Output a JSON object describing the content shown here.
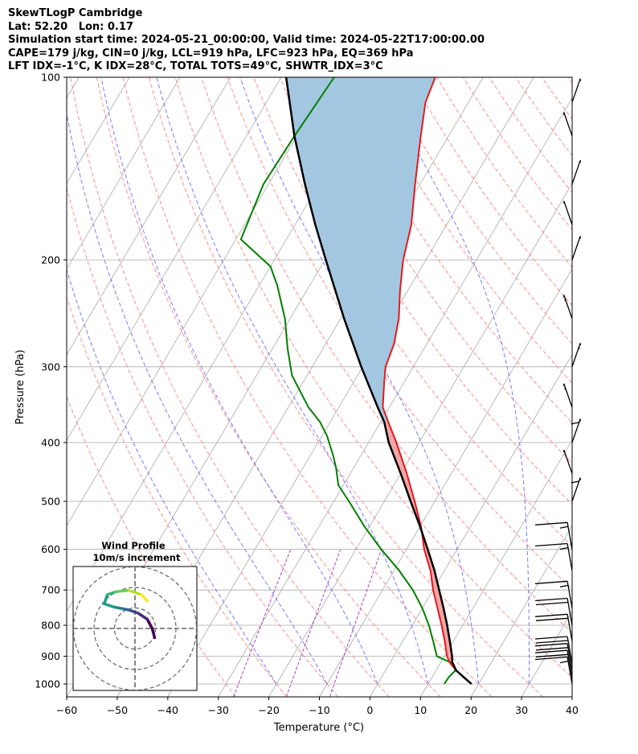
{
  "header": {
    "title": "SkewTLogP Cambridge",
    "location": "Lat: 52.20   Lon: 0.17",
    "times": "Simulation start time: 2024-05-21_00:00:00, Valid time: 2024-05-22T17:00:00.00",
    "params": "CAPE=179 j/kg, CIN=0 j/kg, LCL=919 hPa, LFC=923 hPa, EQ=369 hPa",
    "indices": "LFT IDX=-1°C, K IDX=28°C, TOTAL TOTS=49°C, SHWTR_IDX=3°C"
  },
  "chart_data": {
    "type": "line",
    "subtype": "skew-T log-p",
    "xlabel": "Temperature (°C)",
    "ylabel": "Pressure (hPa)",
    "xlim": [
      -60,
      40
    ],
    "ylim": [
      1050,
      100
    ],
    "y_scale": "log",
    "grid": true,
    "x_ticks": [
      "−60",
      "−50",
      "−40",
      "−30",
      "−20",
      "−10",
      "0",
      "10",
      "20",
      "30",
      "40"
    ],
    "y_ticks": [
      "100",
      "200",
      "300",
      "400",
      "500",
      "600",
      "700",
      "800",
      "900",
      "1000"
    ],
    "colors": {
      "temperature": "#e31a1c",
      "dewpoint": "#008000",
      "parcel": "#000000",
      "cape_fill": "#a3c7e0",
      "cin_fill": "#f4a6a6",
      "dry_adiabat": "#ff7f7f",
      "moist_adiabat": "#6a6aff",
      "mixing_ratio": "#b040c0",
      "isotherm": "#aaaaaa"
    },
    "temperature_profile": [
      {
        "p": 1000,
        "t": 18.6
      },
      {
        "p": 975,
        "t": 16.2
      },
      {
        "p": 950,
        "t": 14.0
      },
      {
        "p": 925,
        "t": 12.0
      },
      {
        "p": 900,
        "t": 10.5
      },
      {
        "p": 850,
        "t": 8.3
      },
      {
        "p": 800,
        "t": 5.8
      },
      {
        "p": 750,
        "t": 3.0
      },
      {
        "p": 700,
        "t": 0.0
      },
      {
        "p": 650,
        "t": -2.8
      },
      {
        "p": 600,
        "t": -6.5
      },
      {
        "p": 550,
        "t": -9.8
      },
      {
        "p": 500,
        "t": -14.0
      },
      {
        "p": 450,
        "t": -18.8
      },
      {
        "p": 400,
        "t": -24.5
      },
      {
        "p": 370,
        "t": -28.5
      },
      {
        "p": 350,
        "t": -31.3
      },
      {
        "p": 320,
        "t": -33.8
      },
      {
        "p": 300,
        "t": -35.5
      },
      {
        "p": 275,
        "t": -36.5
      },
      {
        "p": 250,
        "t": -38.5
      },
      {
        "p": 225,
        "t": -41.5
      },
      {
        "p": 200,
        "t": -44.5
      },
      {
        "p": 175,
        "t": -47.0
      },
      {
        "p": 150,
        "t": -51.0
      },
      {
        "p": 125,
        "t": -55.5
      },
      {
        "p": 110,
        "t": -58.5
      },
      {
        "p": 100,
        "t": -59.5
      }
    ],
    "dewpoint_profile": [
      {
        "p": 1000,
        "t": 13.2
      },
      {
        "p": 975,
        "t": 13.3
      },
      {
        "p": 950,
        "t": 13.8
      },
      {
        "p": 925,
        "t": 12.5
      },
      {
        "p": 900,
        "t": 8.5
      },
      {
        "p": 850,
        "t": 6.0
      },
      {
        "p": 800,
        "t": 3.3
      },
      {
        "p": 750,
        "t": 0.0
      },
      {
        "p": 700,
        "t": -4.0
      },
      {
        "p": 650,
        "t": -9.0
      },
      {
        "p": 600,
        "t": -15.0
      },
      {
        "p": 550,
        "t": -21.0
      },
      {
        "p": 500,
        "t": -27.0
      },
      {
        "p": 470,
        "t": -31.0
      },
      {
        "p": 440,
        "t": -33.5
      },
      {
        "p": 420,
        "t": -35.5
      },
      {
        "p": 390,
        "t": -39.0
      },
      {
        "p": 370,
        "t": -42.0
      },
      {
        "p": 350,
        "t": -46.0
      },
      {
        "p": 310,
        "t": -53.0
      },
      {
        "p": 280,
        "t": -57.0
      },
      {
        "p": 250,
        "t": -61.0
      },
      {
        "p": 220,
        "t": -66.5
      },
      {
        "p": 205,
        "t": -70.0
      },
      {
        "p": 185,
        "t": -79.0
      },
      {
        "p": 150,
        "t": -81.0
      },
      {
        "p": 125,
        "t": -80.5
      },
      {
        "p": 100,
        "t": -79.5
      }
    ],
    "parcel_profile": [
      {
        "p": 1000,
        "t": 18.6
      },
      {
        "p": 950,
        "t": 14.0
      },
      {
        "p": 920,
        "t": 12.2
      },
      {
        "p": 900,
        "t": 11.5
      },
      {
        "p": 850,
        "t": 9.3
      },
      {
        "p": 800,
        "t": 6.9
      },
      {
        "p": 750,
        "t": 4.2
      },
      {
        "p": 700,
        "t": 1.2
      },
      {
        "p": 650,
        "t": -2.0
      },
      {
        "p": 600,
        "t": -5.8
      },
      {
        "p": 550,
        "t": -10.0
      },
      {
        "p": 500,
        "t": -14.8
      },
      {
        "p": 450,
        "t": -20.0
      },
      {
        "p": 400,
        "t": -26.0
      },
      {
        "p": 370,
        "t": -29.3
      },
      {
        "p": 350,
        "t": -32.3
      },
      {
        "p": 300,
        "t": -40.3
      },
      {
        "p": 250,
        "t": -49.3
      },
      {
        "p": 200,
        "t": -59.8
      },
      {
        "p": 175,
        "t": -66.0
      },
      {
        "p": 150,
        "t": -72.8
      },
      {
        "p": 125,
        "t": -80.5
      },
      {
        "p": 100,
        "t": -89.0
      }
    ],
    "wind_profile": {
      "title": "Wind Profile",
      "subtitle": "10m/s increment",
      "rings_ms": [
        10,
        20,
        30
      ],
      "hodograph": [
        {
          "u": 3.2,
          "v": -1.5
        },
        {
          "u": 2.8,
          "v": 0.0
        },
        {
          "u": 2.0,
          "v": 1.5
        },
        {
          "u": 0.5,
          "v": 2.5
        },
        {
          "u": -1.0,
          "v": 3.0
        },
        {
          "u": -2.0,
          "v": 3.2
        },
        {
          "u": -3.5,
          "v": 3.5
        },
        {
          "u": -5.0,
          "v": 4.0
        },
        {
          "u": -4.5,
          "v": 5.5
        },
        {
          "u": -3.0,
          "v": 6.0
        },
        {
          "u": -1.0,
          "v": 6.2
        },
        {
          "u": 1.0,
          "v": 5.5
        },
        {
          "u": 2.0,
          "v": 4.5
        }
      ]
    },
    "wind_barbs": [
      {
        "p": 1000,
        "speed_kt": 15
      },
      {
        "p": 975,
        "speed_kt": 20
      },
      {
        "p": 950,
        "speed_kt": 20
      },
      {
        "p": 925,
        "speed_kt": 20
      },
      {
        "p": 850,
        "speed_kt": 20
      },
      {
        "p": 800,
        "speed_kt": 20
      },
      {
        "p": 750,
        "speed_kt": 15
      },
      {
        "p": 650,
        "speed_kt": 15
      },
      {
        "p": 600,
        "speed_kt": 15
      },
      {
        "p": 500,
        "speed_kt": 15
      },
      {
        "p": 450,
        "speed_kt": 10
      },
      {
        "p": 400,
        "speed_kt": 15
      },
      {
        "p": 350,
        "speed_kt": 20
      },
      {
        "p": 300,
        "speed_kt": 20
      },
      {
        "p": 250,
        "speed_kt": 20
      },
      {
        "p": 200,
        "speed_kt": 10
      },
      {
        "p": 175,
        "speed_kt": 10
      },
      {
        "p": 150,
        "speed_kt": 10
      },
      {
        "p": 125,
        "speed_kt": 10
      },
      {
        "p": 110,
        "speed_kt": 10
      }
    ]
  }
}
